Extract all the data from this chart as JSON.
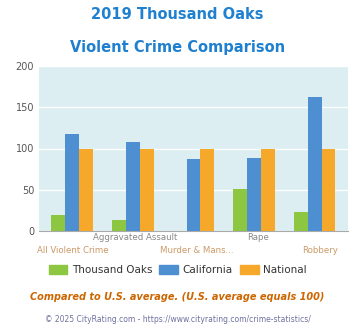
{
  "title_line1": "2019 Thousand Oaks",
  "title_line2": "Violent Crime Comparison",
  "title_color": "#2080d0",
  "categories": [
    "All Violent Crime",
    "Aggravated Assault",
    "Murder & Mans...",
    "Rape",
    "Robbery"
  ],
  "top_labels": [
    "",
    "Aggravated Assault",
    "",
    "Rape",
    ""
  ],
  "bot_labels": [
    "All Violent Crime",
    "",
    "Murder & Mans...",
    "",
    "Robbery"
  ],
  "thousand_oaks": [
    19,
    13,
    0,
    51,
    23
  ],
  "california": [
    118,
    108,
    87,
    88,
    162
  ],
  "national": [
    100,
    100,
    100,
    100,
    100
  ],
  "colors": {
    "thousand_oaks": "#8dc640",
    "california": "#4d8fd1",
    "national": "#f5a829"
  },
  "ylim": [
    0,
    200
  ],
  "yticks": [
    0,
    50,
    100,
    150,
    200
  ],
  "background_color": "#ddeef2",
  "legend_labels": [
    "Thousand Oaks",
    "California",
    "National"
  ],
  "legend_text_color": "#333333",
  "footnote1": "Compared to U.S. average. (U.S. average equals 100)",
  "footnote2": "© 2025 CityRating.com - https://www.cityrating.com/crime-statistics/",
  "footnote1_color": "#cc6600",
  "footnote2_color": "#7070a0",
  "top_label_color": "#888888",
  "bot_label_color": "#cc9966"
}
